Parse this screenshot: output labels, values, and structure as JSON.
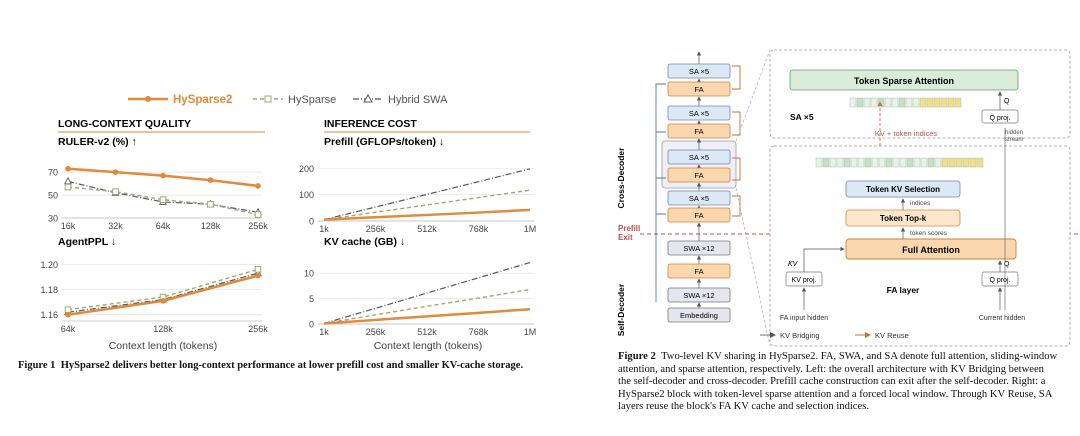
{
  "figure1": {
    "legend": [
      {
        "name": "HySparse2",
        "color": "#e08a3a"
      },
      {
        "name": "HySparse",
        "color": "#9bab6d"
      },
      {
        "name": "Hybrid SWA",
        "color": "#555566"
      }
    ],
    "section_quality": "LONG-CONTEXT QUALITY",
    "section_cost": "INFERENCE COST",
    "xlabel": "Context length (tokens)",
    "caption_label": "Figure 1",
    "caption_text": "HySparse2 delivers better long-context performance at lower prefill cost and smaller KV-cache storage."
  },
  "chart_data": [
    {
      "type": "line",
      "title": "RULER-v2 (%) ↑",
      "categories": [
        "16k",
        "32k",
        "64k",
        "128k",
        "256k"
      ],
      "ylim": [
        30,
        78
      ],
      "yticks": [
        30,
        50,
        70
      ],
      "series": [
        {
          "name": "HySparse2",
          "values": [
            73,
            70,
            67,
            63,
            58
          ]
        },
        {
          "name": "HySparse",
          "values": [
            57,
            53,
            46,
            42,
            33
          ]
        },
        {
          "name": "Hybrid SWA",
          "values": [
            62,
            52,
            44,
            42,
            35
          ]
        }
      ]
    },
    {
      "type": "line",
      "title": "AgentPPL ↓",
      "categories": [
        "64k",
        "128k",
        "256k"
      ],
      "ylim": [
        1.155,
        1.205
      ],
      "yticks": [
        1.16,
        1.18,
        1.2
      ],
      "ytick_labels": [
        "1.16",
        "1.18",
        "1.20"
      ],
      "series": [
        {
          "name": "HySparse2",
          "values": [
            1.16,
            1.171,
            1.191
          ]
        },
        {
          "name": "HySparse",
          "values": [
            1.164,
            1.174,
            1.196
          ]
        },
        {
          "name": "Hybrid SWA",
          "values": [
            1.162,
            1.172,
            1.193
          ]
        }
      ]
    },
    {
      "type": "line",
      "title": "Prefill (GFLOPs/token) ↓",
      "categories": [
        "1k",
        "256k",
        "512k",
        "768k",
        "1M"
      ],
      "ylim": [
        0,
        220
      ],
      "yticks": [
        0,
        100,
        200
      ],
      "series": [
        {
          "name": "HySparse2",
          "values": [
            5,
            14,
            23,
            32,
            42
          ]
        },
        {
          "name": "HySparse",
          "values": [
            5,
            33,
            61,
            89,
            117
          ]
        },
        {
          "name": "Hybrid SWA",
          "values": [
            5,
            53,
            101,
            149,
            198
          ]
        }
      ]
    },
    {
      "type": "line",
      "title": "KV cache (GB) ↓",
      "categories": [
        "1k",
        "256k",
        "512k",
        "768k",
        "1M"
      ],
      "ylim": [
        0,
        13
      ],
      "yticks": [
        0,
        5,
        10
      ],
      "series": [
        {
          "name": "HySparse2",
          "values": [
            0.1,
            0.8,
            1.5,
            2.2,
            2.9
          ]
        },
        {
          "name": "HySparse",
          "values": [
            0.1,
            1.8,
            3.5,
            5.1,
            6.8
          ]
        },
        {
          "name": "Hybrid SWA",
          "values": [
            0.1,
            3.1,
            6.1,
            9.1,
            12.1
          ]
        }
      ]
    }
  ],
  "figure2": {
    "stack": {
      "sa5": "SA ×5",
      "fa": "FA",
      "swa12": "SWA ×12",
      "embedding": "Embedding",
      "cross_decoder": "Cross-Decoder",
      "self_decoder": "Self-Decoder",
      "prefill_exit": "Prefill\nExit"
    },
    "right": {
      "token_sparse_attention": "Token Sparse Attention",
      "sa_x5": "SA ×5",
      "q_proj": "Q proj.",
      "q": "Q",
      "hidden_stream": "hidden\nstream",
      "kv_token_indices": "KV + token indices",
      "token_kv_selection": "Token KV Selection",
      "indices": "indices",
      "token_topk": "Token Top-k",
      "token_scores": "token scores",
      "full_attention": "Full Attention",
      "kv": "KV",
      "kv_proj": "KV proj.",
      "fa_layer": "FA layer",
      "fa_input_hidden": "FA input hidden",
      "current_hidden": "Current hidden",
      "kv_bridging": "KV Bridging",
      "kv_reuse": "KV Reuse"
    },
    "caption_label": "Figure 2",
    "caption_text": "Two-level KV sharing in HySparse2. FA, SWA, and SA denote full attention, sliding-window attention, and sparse attention, respectively. Left: the overall architecture with KV Bridging between the self-decoder and cross-decoder. Prefill cache construction can exit after the self-decoder. Right: a HySparse2 block with token-level sparse attention and a forced local window. Through KV Reuse, SA layers reuse the block's FA KV cache and selection indices."
  }
}
